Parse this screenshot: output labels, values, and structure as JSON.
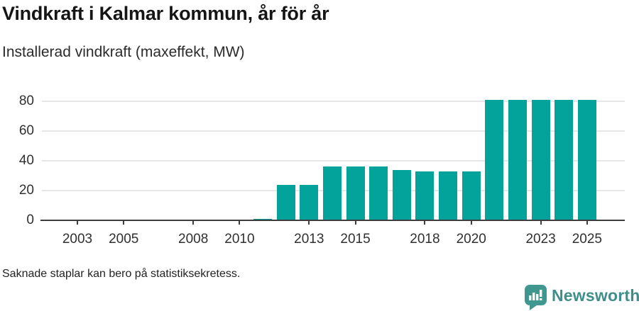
{
  "header": {
    "title": "Vindkraft i Kalmar kommun, år för år",
    "subtitle": "Installerad vindkraft (maxeffekt, MW)"
  },
  "chart_data": {
    "type": "bar",
    "title": "Vindkraft i Kalmar kommun, år för år",
    "subtitle": "Installerad vindkraft (maxeffekt, MW)",
    "unit": "MW",
    "categories": [
      2002,
      2003,
      2004,
      2005,
      2006,
      2007,
      2008,
      2009,
      2010,
      2011,
      2012,
      2013,
      2014,
      2015,
      2016,
      2017,
      2018,
      2019,
      2020,
      2021,
      2022,
      2023,
      2024,
      2025
    ],
    "values": [
      null,
      null,
      null,
      null,
      null,
      null,
      null,
      null,
      null,
      1,
      24,
      24,
      36,
      36,
      36,
      34,
      33,
      33,
      33,
      81,
      81,
      81,
      81,
      81
    ],
    "xtick_labels": [
      "2003",
      "2005",
      "2008",
      "2010",
      "2013",
      "2015",
      "2018",
      "2020",
      "2023",
      "2025"
    ],
    "ytick_values": [
      0,
      20,
      40,
      60,
      80
    ],
    "ylim": [
      0,
      87
    ],
    "grid": true,
    "legend_position": "none",
    "missing_years_note": "2002-2010 have no bars",
    "colors": {
      "bar": "#03a39b",
      "grid": "#e7e7e7",
      "axis": "#3d3d3d",
      "tick_label": "#303030"
    }
  },
  "footer": {
    "note": "Saknade staplar kan bero på statistiksekretess."
  },
  "brand": {
    "name": "Newsworthy",
    "text_color": "#3f8e8a",
    "icon_color": "#3f978f",
    "icon": "newsworthy-speech-bubble-bar-chart-icon"
  }
}
